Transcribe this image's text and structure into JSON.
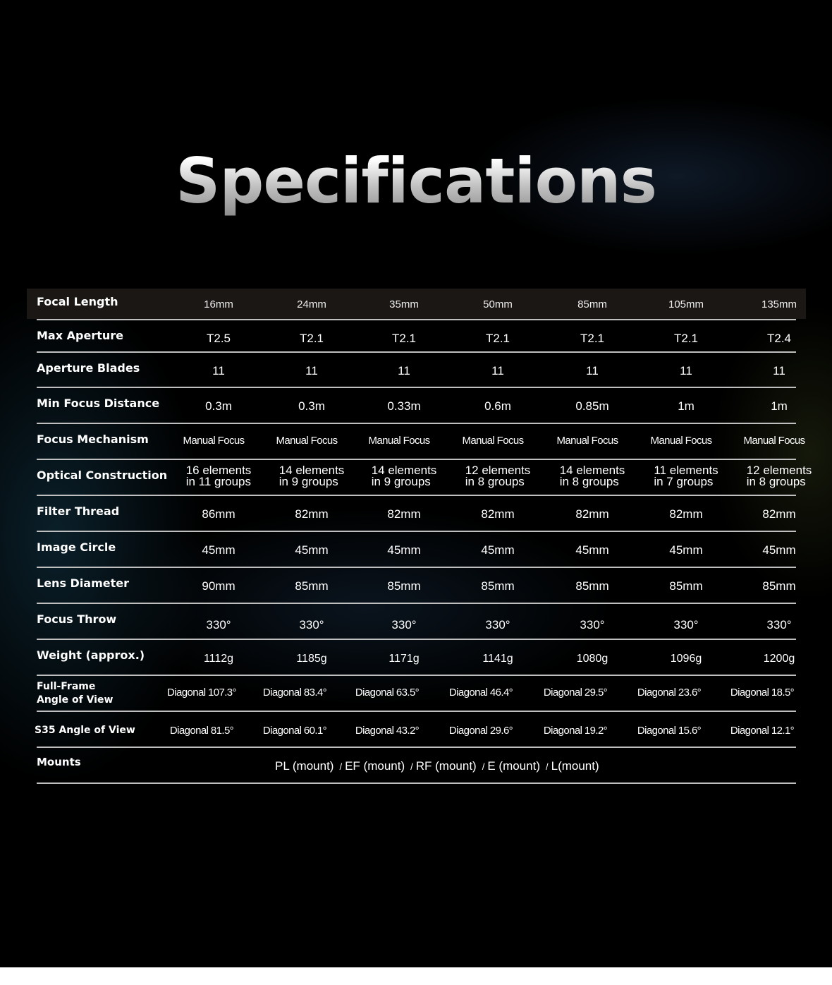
{
  "title": "Specifications",
  "columns_header": {
    "label": "Focal Length",
    "values": [
      "16mm",
      "24mm",
      "35mm",
      "50mm",
      "85mm",
      "105mm",
      "135mm"
    ]
  },
  "rows": [
    {
      "label": "Max Aperture",
      "values": [
        "T2.5",
        "T2.1",
        "T2.1",
        "T2.1",
        "T2.1",
        "T2.1",
        "T2.4"
      ]
    },
    {
      "label": "Aperture Blades",
      "values": [
        "11",
        "11",
        "11",
        "11",
        "11",
        "11",
        "11"
      ]
    },
    {
      "label": "Min Focus Distance",
      "values": [
        "0.3m",
        "0.3m",
        "0.33m",
        "0.6m",
        "0.85m",
        "1m",
        "1m"
      ]
    },
    {
      "label": "Focus Mechanism",
      "values": [
        "Manual Focus",
        "Manual Focus",
        "Manual Focus",
        "Manual Focus",
        "Manual Focus",
        "Manual Focus",
        "Manual Focus"
      ]
    },
    {
      "label": "Optical Construction",
      "values": [
        "16 elements\nin 11 groups",
        "14 elements\nin 9 groups",
        "14 elements\nin 9 groups",
        "12 elements\nin 8 groups",
        "14 elements\nin 8 groups",
        "11 elements\nin 7 groups",
        "12 elements\nin 8 groups"
      ]
    },
    {
      "label": "Filter Thread",
      "values": [
        "86mm",
        "82mm",
        "82mm",
        "82mm",
        "82mm",
        "82mm",
        "82mm"
      ]
    },
    {
      "label": "Image Circle",
      "values": [
        "45mm",
        "45mm",
        "45mm",
        "45mm",
        "45mm",
        "45mm",
        "45mm"
      ]
    },
    {
      "label": "Lens Diameter",
      "values": [
        "90mm",
        "85mm",
        "85mm",
        "85mm",
        "85mm",
        "85mm",
        "85mm"
      ]
    },
    {
      "label": "Focus Throw",
      "values": [
        "330°",
        "330°",
        "330°",
        "330°",
        "330°",
        "330°",
        "330°"
      ]
    },
    {
      "label": "Weight (approx.)",
      "values": [
        "1112g",
        "1185g",
        "1171g",
        "1141g",
        "1080g",
        "1096g",
        "1200g"
      ]
    },
    {
      "label": "Full-Frame\nAngle of View",
      "values": [
        "Diagonal 107.3°",
        "Diagonal  83.4°",
        "Diagonal 63.5°",
        "Diagonal 46.4°",
        "Diagonal 29.5°",
        "Diagonal 23.6°",
        "Diagonal 18.5°"
      ]
    },
    {
      "label": "S35 Angle of View",
      "values": [
        "Diagonal  81.5°",
        "Diagonal 60.1°",
        "Diagonal 43.2°",
        "Diagonal 29.6°",
        "Diagonal 19.2°",
        "Diagonal 15.6°",
        "Diagonal 12.1°"
      ]
    }
  ],
  "mounts": {
    "label": "Mounts",
    "values": [
      "PL (mount)",
      "EF (mount)",
      "RF (mount)",
      "E (mount)",
      "L(mount)"
    ],
    "separator": "/"
  }
}
